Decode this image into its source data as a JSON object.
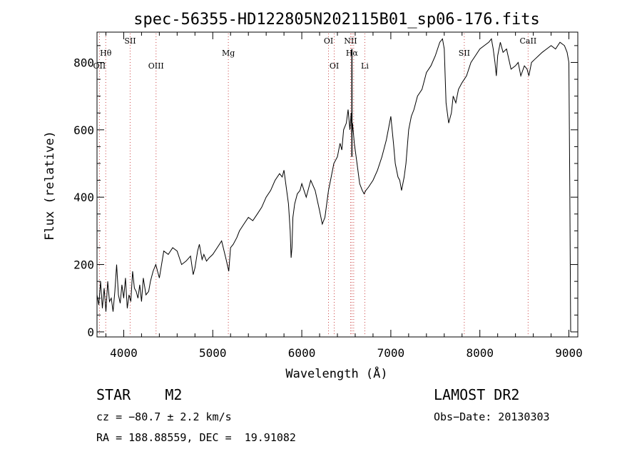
{
  "chart_data": {
    "type": "line",
    "title": "spec-56355-HD122805N202115B01_sp06-176.fits",
    "xlabel": "Wavelength (Å)",
    "ylabel": "Flux (relative)",
    "xlim": [
      3700,
      9100
    ],
    "ylim": [
      -15,
      890
    ],
    "xticks": [
      4000,
      5000,
      6000,
      7000,
      8000,
      9000
    ],
    "yticks": [
      0,
      200,
      400,
      600,
      800
    ],
    "grid": false,
    "spectral_lines": [
      {
        "label": "Hθ",
        "wavelength": 3798,
        "row": 1
      },
      {
        "label": "OII",
        "wavelength": 3727,
        "row": 2
      },
      {
        "label": "SII",
        "wavelength": 4072,
        "row": 0
      },
      {
        "label": "OIII",
        "wavelength": 4363,
        "row": 2
      },
      {
        "label": "Mg",
        "wavelength": 5175,
        "row": 1
      },
      {
        "label": "OI",
        "wavelength": 6300,
        "row": 0
      },
      {
        "label": "OI",
        "wavelength": 6364,
        "row": 2
      },
      {
        "label": "NII",
        "wavelength": 6548,
        "row": 0
      },
      {
        "label": "NII",
        "wavelength": 6583,
        "row": 0
      },
      {
        "label": "Hα",
        "wavelength": 6563,
        "row": 1
      },
      {
        "label": "Li",
        "wavelength": 6708,
        "row": 2
      },
      {
        "label": "SII",
        "wavelength": 7825,
        "row": 1
      },
      {
        "label": "CaII",
        "wavelength": 8542,
        "row": 0
      }
    ],
    "series": [
      {
        "x": [
          3700,
          3720,
          3740,
          3760,
          3780,
          3800,
          3820,
          3840,
          3860,
          3880,
          3900,
          3920,
          3940,
          3960,
          3980,
          4000,
          4020,
          4040,
          4060,
          4080,
          4100,
          4120,
          4140,
          4160,
          4180,
          4200,
          4220,
          4250,
          4280,
          4300,
          4330,
          4360,
          4400,
          4450,
          4500,
          4550,
          4600,
          4650,
          4700,
          4750,
          4780,
          4800,
          4830,
          4850,
          4880,
          4900,
          4930,
          4960,
          5000,
          5050,
          5100,
          5150,
          5180,
          5200,
          5230,
          5270,
          5300,
          5350,
          5400,
          5450,
          5500,
          5550,
          5600,
          5650,
          5700,
          5750,
          5780,
          5800,
          5820,
          5850,
          5870,
          5880,
          5890,
          5900,
          5920,
          5950,
          5980,
          6000,
          6050,
          6100,
          6150,
          6200,
          6230,
          6260,
          6300,
          6330,
          6360,
          6400,
          6430,
          6450,
          6470,
          6500,
          6520,
          6540,
          6555,
          6563,
          6570,
          6590,
          6620,
          6650,
          6680,
          6700,
          6720,
          6750,
          6800,
          6850,
          6900,
          6950,
          7000,
          7030,
          7050,
          7080,
          7100,
          7120,
          7150,
          7170,
          7200,
          7230,
          7260,
          7300,
          7350,
          7400,
          7450,
          7500,
          7550,
          7580,
          7600,
          7620,
          7650,
          7680,
          7700,
          7730,
          7760,
          7800,
          7850,
          7900,
          7950,
          8000,
          8050,
          8100,
          8130,
          8150,
          8170,
          8185,
          8200,
          8230,
          8260,
          8300,
          8350,
          8400,
          8430,
          8460,
          8500,
          8530,
          8550,
          8580,
          8620,
          8660,
          8700,
          8750,
          8800,
          8850,
          8900,
          8950,
          8980,
          9000,
          9010,
          9020
        ],
        "y": [
          110,
          80,
          150,
          70,
          130,
          60,
          150,
          90,
          100,
          60,
          120,
          200,
          110,
          85,
          140,
          100,
          160,
          70,
          110,
          90,
          180,
          130,
          120,
          100,
          140,
          90,
          160,
          110,
          120,
          150,
          180,
          200,
          160,
          240,
          230,
          250,
          240,
          200,
          210,
          225,
          170,
          190,
          240,
          260,
          215,
          230,
          210,
          220,
          230,
          250,
          270,
          215,
          180,
          250,
          260,
          280,
          300,
          320,
          340,
          330,
          350,
          370,
          400,
          420,
          450,
          470,
          460,
          480,
          440,
          380,
          300,
          220,
          250,
          340,
          380,
          410,
          420,
          440,
          400,
          450,
          420,
          360,
          320,
          340,
          420,
          460,
          500,
          520,
          560,
          540,
          600,
          620,
          660,
          600,
          650,
          580,
          620,
          560,
          500,
          440,
          420,
          410,
          420,
          430,
          450,
          480,
          520,
          570,
          640,
          560,
          500,
          460,
          450,
          420,
          460,
          500,
          600,
          640,
          660,
          700,
          720,
          770,
          790,
          820,
          860,
          870,
          840,
          680,
          620,
          650,
          700,
          680,
          720,
          740,
          760,
          800,
          820,
          840,
          850,
          860,
          870,
          840,
          800,
          760,
          820,
          860,
          830,
          840,
          780,
          790,
          800,
          760,
          790,
          780,
          760,
          800,
          810,
          820,
          830,
          840,
          850,
          840,
          860,
          850,
          830,
          800,
          420,
          0
        ]
      }
    ]
  },
  "info": {
    "left_line1": "STAR    M2",
    "left_line2": "cz = −80.7 ± 2.2 km/s",
    "left_line3": "RA = 188.88559, DEC =  19.91082",
    "right_line1": "LAMOST DR2",
    "right_line2": "Obs−Date: 20130303"
  }
}
